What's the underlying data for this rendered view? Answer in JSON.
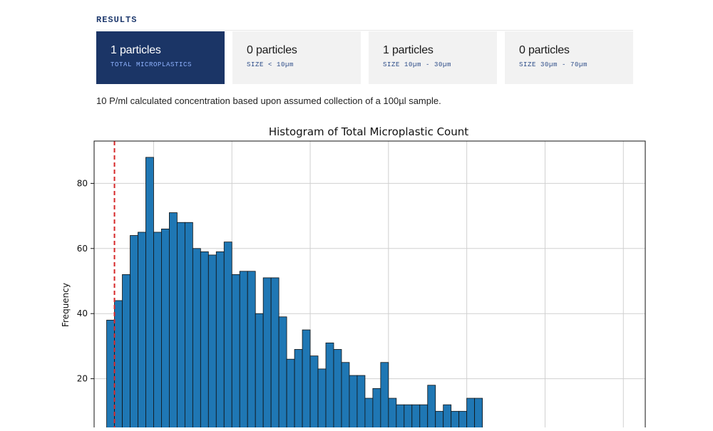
{
  "results": {
    "title": "RESULTS",
    "cards": [
      {
        "count": "1 particles",
        "label": "TOTAL MICROPLASTICS",
        "active": true
      },
      {
        "count": "0 particles",
        "label": "SIZE < 10µm",
        "active": false
      },
      {
        "count": "1 particles",
        "label": "SIZE 10µm - 30µm",
        "active": false
      },
      {
        "count": "0 particles",
        "label": "SIZE 30µm - 70µm",
        "active": false
      }
    ],
    "concentration_text": "10 P/ml calculated concentration based upon assumed collection of a 100µl sample."
  },
  "chart_data": {
    "type": "bar",
    "title": "Histogram of Total Microplastic Count",
    "ylabel": "Frequency",
    "xlabel": "",
    "yticks": [
      20,
      40,
      60,
      80
    ],
    "ylim": [
      0,
      93
    ],
    "xlim": [
      -3.8,
      31.4
    ],
    "bin_width": 0.5,
    "bins_start": -3.0,
    "values": [
      38,
      44,
      52,
      64,
      65,
      88,
      65,
      66,
      71,
      68,
      68,
      60,
      59,
      58,
      59,
      62,
      52,
      53,
      53,
      40,
      51,
      51,
      39,
      26,
      29,
      35,
      27,
      23,
      31,
      29,
      25,
      21,
      21,
      14,
      17,
      25,
      14,
      12,
      12,
      12,
      12,
      18,
      10,
      12,
      10,
      10,
      14,
      14
    ],
    "threshold_x": -2.5,
    "bar_color": "#1f77b4",
    "threshold_color": "#d62728",
    "grid": true
  }
}
